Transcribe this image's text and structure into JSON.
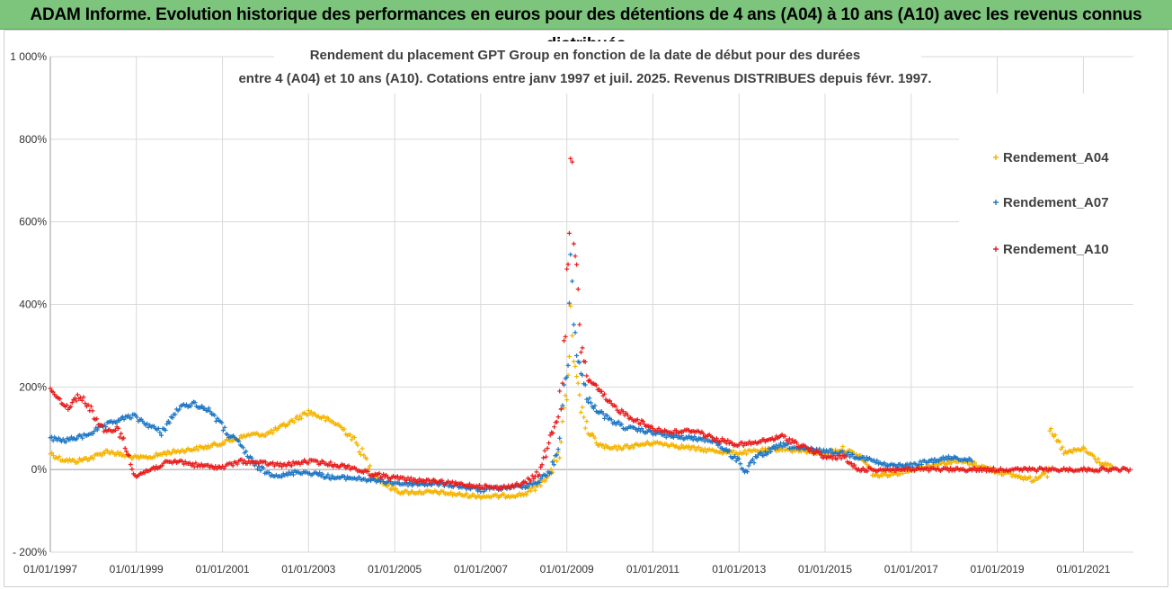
{
  "banner": {
    "title": "ADAM Informe. Evolution historique des performances en euros pour des détentions de 4 ans (A04) à 10 ans (A10) avec les revenus connus distribués"
  },
  "chart_data": {
    "type": "scatter",
    "title_lines": [
      "Rendement du placement GPT Group en fonction de la date de début pour des durées",
      "entre 4 (A04) et 10 ans (A10).  Cotations entre janv 1997 et juil. 2025. Revenus DISTRIBUES depuis févr. 1997."
    ],
    "xlabel": "",
    "ylabel": "",
    "x_range": [
      "1997-01-01",
      "2022-03-01"
    ],
    "ylim": [
      -200,
      1000
    ],
    "y_ticks": [
      -200,
      0,
      200,
      400,
      600,
      800,
      1000
    ],
    "y_tick_labels": [
      "- 200%",
      "0%",
      "200%",
      "400%",
      "600%",
      "800%",
      "1 000%"
    ],
    "x_ticks": [
      "1997-01-01",
      "1999-01-01",
      "2001-01-01",
      "2003-01-01",
      "2005-01-01",
      "2007-01-01",
      "2009-01-01",
      "2011-01-01",
      "2013-01-01",
      "2015-01-01",
      "2017-01-01",
      "2019-01-01",
      "2021-01-01"
    ],
    "x_tick_labels": [
      "01/01/1997",
      "01/01/1999",
      "01/01/2001",
      "01/01/2003",
      "01/01/2005",
      "01/01/2007",
      "01/01/2009",
      "01/01/2011",
      "01/01/2013",
      "01/01/2015",
      "01/01/2017",
      "01/01/2019",
      "01/01/2021"
    ],
    "grid": true,
    "legend_position": "right",
    "marker": "+",
    "series": [
      {
        "name": "Rendement_A04",
        "color": "#f5b400",
        "points": [
          [
            "1997-01-01",
            40
          ],
          [
            "1997-04-01",
            25
          ],
          [
            "1997-08-01",
            20
          ],
          [
            "1998-01-01",
            30
          ],
          [
            "1998-05-01",
            45
          ],
          [
            "1998-09-01",
            35
          ],
          [
            "1999-01-01",
            28
          ],
          [
            "1999-05-01",
            30
          ],
          [
            "1999-09-01",
            40
          ],
          [
            "2000-01-01",
            45
          ],
          [
            "2000-05-01",
            50
          ],
          [
            "2000-09-01",
            55
          ],
          [
            "2001-01-01",
            65
          ],
          [
            "2001-05-01",
            75
          ],
          [
            "2001-09-01",
            85
          ],
          [
            "2002-01-01",
            85
          ],
          [
            "2002-05-01",
            100
          ],
          [
            "2002-09-01",
            120
          ],
          [
            "2003-01-01",
            140
          ],
          [
            "2003-05-01",
            125
          ],
          [
            "2003-09-01",
            110
          ],
          [
            "2004-01-01",
            80
          ],
          [
            "2004-04-01",
            40
          ],
          [
            "2004-07-01",
            -10
          ],
          [
            "2004-11-01",
            -40
          ],
          [
            "2005-03-01",
            -55
          ],
          [
            "2005-08-01",
            -55
          ],
          [
            "2006-01-01",
            -55
          ],
          [
            "2006-06-01",
            -60
          ],
          [
            "2007-01-01",
            -65
          ],
          [
            "2007-06-01",
            -65
          ],
          [
            "2008-01-01",
            -60
          ],
          [
            "2008-05-01",
            -40
          ],
          [
            "2008-09-01",
            0
          ],
          [
            "2008-11-01",
            50
          ],
          [
            "2009-01-01",
            180
          ],
          [
            "2009-02-01",
            350
          ],
          [
            "2009-03-01",
            250
          ],
          [
            "2009-05-01",
            150
          ],
          [
            "2009-07-01",
            90
          ],
          [
            "2009-10-01",
            60
          ],
          [
            "2010-01-01",
            50
          ],
          [
            "2010-06-01",
            55
          ],
          [
            "2011-01-01",
            65
          ],
          [
            "2011-06-01",
            60
          ],
          [
            "2012-01-01",
            50
          ],
          [
            "2012-06-01",
            45
          ],
          [
            "2013-01-01",
            40
          ],
          [
            "2013-06-01",
            45
          ],
          [
            "2014-01-01",
            50
          ],
          [
            "2014-06-01",
            45
          ],
          [
            "2015-01-01",
            40
          ],
          [
            "2015-06-01",
            50
          ],
          [
            "2015-11-01",
            30
          ],
          [
            "2016-03-01",
            -15
          ],
          [
            "2016-08-01",
            -10
          ],
          [
            "2017-01-01",
            0
          ],
          [
            "2017-06-01",
            10
          ],
          [
            "2018-01-01",
            20
          ],
          [
            "2018-06-01",
            15
          ],
          [
            "2019-01-01",
            -5
          ],
          [
            "2019-06-01",
            -15
          ],
          [
            "2019-11-01",
            -25
          ],
          [
            "2020-03-01",
            0
          ],
          [
            "2020-04-01",
            90
          ],
          [
            "2020-08-01",
            40
          ],
          [
            "2021-01-01",
            50
          ],
          [
            "2021-06-01",
            15
          ],
          [
            "2021-09-01",
            5
          ]
        ]
      },
      {
        "name": "Rendement_A07",
        "color": "#1f77c4",
        "points": [
          [
            "1997-01-01",
            75
          ],
          [
            "1997-05-01",
            70
          ],
          [
            "1997-10-01",
            80
          ],
          [
            "1998-03-01",
            100
          ],
          [
            "1998-08-01",
            120
          ],
          [
            "1998-12-01",
            130
          ],
          [
            "1999-04-01",
            110
          ],
          [
            "1999-08-01",
            90
          ],
          [
            "2000-01-01",
            150
          ],
          [
            "2000-05-01",
            160
          ],
          [
            "2000-10-01",
            140
          ],
          [
            "2001-02-01",
            90
          ],
          [
            "2001-06-01",
            60
          ],
          [
            "2001-10-01",
            10
          ],
          [
            "2002-02-01",
            -10
          ],
          [
            "2002-06-01",
            -15
          ],
          [
            "2002-10-01",
            -5
          ],
          [
            "2003-03-01",
            -10
          ],
          [
            "2003-08-01",
            -20
          ],
          [
            "2004-01-01",
            -20
          ],
          [
            "2004-06-01",
            -25
          ],
          [
            "2004-11-01",
            -30
          ],
          [
            "2005-04-01",
            -35
          ],
          [
            "2005-09-01",
            -35
          ],
          [
            "2006-02-01",
            -35
          ],
          [
            "2006-07-01",
            -40
          ],
          [
            "2007-01-01",
            -50
          ],
          [
            "2007-06-01",
            -45
          ],
          [
            "2008-01-01",
            -40
          ],
          [
            "2008-05-01",
            -30
          ],
          [
            "2008-09-01",
            0
          ],
          [
            "2008-11-01",
            80
          ],
          [
            "2009-01-01",
            250
          ],
          [
            "2009-02-01",
            500
          ],
          [
            "2009-03-01",
            350
          ],
          [
            "2009-05-01",
            230
          ],
          [
            "2009-07-01",
            170
          ],
          [
            "2009-10-01",
            140
          ],
          [
            "2010-01-01",
            120
          ],
          [
            "2010-06-01",
            100
          ],
          [
            "2011-01-01",
            90
          ],
          [
            "2011-06-01",
            80
          ],
          [
            "2012-01-01",
            75
          ],
          [
            "2012-06-01",
            70
          ],
          [
            "2013-01-01",
            20
          ],
          [
            "2013-03-01",
            -5
          ],
          [
            "2013-06-01",
            30
          ],
          [
            "2014-01-01",
            60
          ],
          [
            "2014-06-01",
            50
          ],
          [
            "2015-01-01",
            45
          ],
          [
            "2015-06-01",
            40
          ],
          [
            "2016-01-01",
            25
          ],
          [
            "2016-06-01",
            10
          ],
          [
            "2017-01-01",
            10
          ],
          [
            "2017-06-01",
            20
          ],
          [
            "2018-01-01",
            30
          ],
          [
            "2018-06-01",
            20
          ]
        ]
      },
      {
        "name": "Rendement_A10",
        "color": "#e81e1e",
        "points": [
          [
            "1997-01-01",
            200
          ],
          [
            "1997-03-01",
            175
          ],
          [
            "1997-06-01",
            150
          ],
          [
            "1997-09-01",
            180
          ],
          [
            "1997-12-01",
            150
          ],
          [
            "1998-04-01",
            90
          ],
          [
            "1998-08-01",
            100
          ],
          [
            "1998-11-01",
            30
          ],
          [
            "1999-01-01",
            -15
          ],
          [
            "1999-05-01",
            0
          ],
          [
            "1999-09-01",
            15
          ],
          [
            "2000-01-01",
            20
          ],
          [
            "2000-06-01",
            10
          ],
          [
            "2001-01-01",
            5
          ],
          [
            "2001-06-01",
            20
          ],
          [
            "2002-01-01",
            15
          ],
          [
            "2002-06-01",
            10
          ],
          [
            "2003-01-01",
            20
          ],
          [
            "2003-06-01",
            15
          ],
          [
            "2004-01-01",
            5
          ],
          [
            "2004-06-01",
            -10
          ],
          [
            "2005-01-01",
            -20
          ],
          [
            "2005-06-01",
            -25
          ],
          [
            "2006-01-01",
            -30
          ],
          [
            "2006-06-01",
            -35
          ],
          [
            "2007-01-01",
            -40
          ],
          [
            "2007-06-01",
            -45
          ],
          [
            "2008-01-01",
            -35
          ],
          [
            "2008-05-01",
            -10
          ],
          [
            "2008-08-01",
            60
          ],
          [
            "2008-11-01",
            150
          ],
          [
            "2009-01-01",
            350
          ],
          [
            "2009-02-01",
            780
          ],
          [
            "2009-03-01",
            550
          ],
          [
            "2009-05-01",
            300
          ],
          [
            "2009-07-01",
            220
          ],
          [
            "2009-10-01",
            190
          ],
          [
            "2010-01-01",
            160
          ],
          [
            "2010-06-01",
            130
          ],
          [
            "2011-01-01",
            100
          ],
          [
            "2011-06-01",
            90
          ],
          [
            "2012-01-01",
            95
          ],
          [
            "2012-06-01",
            75
          ],
          [
            "2013-01-01",
            60
          ],
          [
            "2013-06-01",
            65
          ],
          [
            "2014-01-01",
            80
          ],
          [
            "2014-06-01",
            60
          ],
          [
            "2015-01-01",
            30
          ],
          [
            "2015-06-01",
            30
          ],
          [
            "2015-10-01",
            0
          ],
          [
            "2016-06-01",
            0
          ],
          [
            "2017-06-01",
            0
          ],
          [
            "2018-06-01",
            0
          ],
          [
            "2019-06-01",
            0
          ],
          [
            "2020-06-01",
            0
          ],
          [
            "2021-06-01",
            0
          ],
          [
            "2022-02-01",
            0
          ]
        ]
      }
    ]
  }
}
